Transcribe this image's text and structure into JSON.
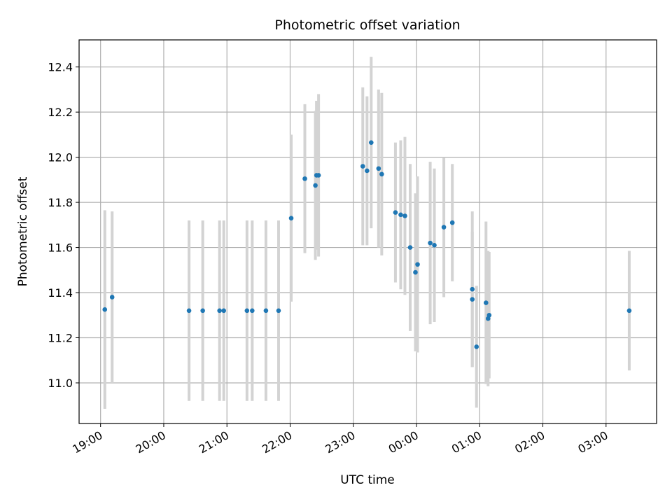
{
  "chart_data": {
    "type": "scatter",
    "title": "Photometric offset variation",
    "xlabel": "UTC time",
    "ylabel": "Photometric offset",
    "x_unit": "hours (UTC), values >= 24 are after midnight",
    "xlim": [
      18.66,
      27.8
    ],
    "ylim": [
      10.82,
      12.52
    ],
    "grid": true,
    "x_ticks": [
      19,
      20,
      21,
      22,
      23,
      24,
      25,
      26,
      27
    ],
    "x_tick_labels": [
      "19:00",
      "20:00",
      "21:00",
      "22:00",
      "23:00",
      "00:00",
      "01:00",
      "02:00",
      "03:00"
    ],
    "y_ticks": [
      11.0,
      11.2,
      11.4,
      11.6,
      11.8,
      12.0,
      12.2,
      12.4
    ],
    "y_tick_labels": [
      "11.0",
      "11.2",
      "11.4",
      "11.6",
      "11.8",
      "12.0",
      "12.2",
      "12.4"
    ],
    "series": [
      {
        "marker_color": "#1f77b4",
        "errorbar_color": "#d3d3d3",
        "points": [
          {
            "x": 19.067,
            "y": 11.325,
            "err": 0.44
          },
          {
            "x": 19.183,
            "y": 11.38,
            "err": 0.38
          },
          {
            "x": 20.4,
            "y": 11.32,
            "err": 0.4
          },
          {
            "x": 20.617,
            "y": 11.32,
            "err": 0.4
          },
          {
            "x": 20.883,
            "y": 11.32,
            "err": 0.4
          },
          {
            "x": 20.95,
            "y": 11.32,
            "err": 0.4
          },
          {
            "x": 21.317,
            "y": 11.32,
            "err": 0.4
          },
          {
            "x": 21.4,
            "y": 11.32,
            "err": 0.4
          },
          {
            "x": 21.617,
            "y": 11.32,
            "err": 0.4
          },
          {
            "x": 21.817,
            "y": 11.32,
            "err": 0.4
          },
          {
            "x": 22.017,
            "y": 11.73,
            "err": 0.37
          },
          {
            "x": 22.233,
            "y": 11.905,
            "err": 0.33
          },
          {
            "x": 22.4,
            "y": 11.875,
            "err": 0.33
          },
          {
            "x": 22.417,
            "y": 11.92,
            "err": 0.33
          },
          {
            "x": 22.45,
            "y": 11.92,
            "err": 0.36
          },
          {
            "x": 23.15,
            "y": 11.96,
            "err": 0.35
          },
          {
            "x": 23.217,
            "y": 11.94,
            "err": 0.33
          },
          {
            "x": 23.283,
            "y": 12.065,
            "err": 0.38
          },
          {
            "x": 23.4,
            "y": 11.95,
            "err": 0.35
          },
          {
            "x": 23.45,
            "y": 11.925,
            "err": 0.36
          },
          {
            "x": 23.667,
            "y": 11.755,
            "err": 0.31
          },
          {
            "x": 23.75,
            "y": 11.745,
            "err": 0.33
          },
          {
            "x": 23.817,
            "y": 11.74,
            "err": 0.35
          },
          {
            "x": 23.9,
            "y": 11.6,
            "err": 0.37
          },
          {
            "x": 23.983,
            "y": 11.49,
            "err": 0.35
          },
          {
            "x": 24.017,
            "y": 11.525,
            "err": 0.39
          },
          {
            "x": 24.217,
            "y": 11.62,
            "err": 0.36
          },
          {
            "x": 24.283,
            "y": 11.61,
            "err": 0.34
          },
          {
            "x": 24.433,
            "y": 11.69,
            "err": 0.31
          },
          {
            "x": 24.567,
            "y": 11.71,
            "err": 0.26
          },
          {
            "x": 24.883,
            "y": 11.415,
            "err": 0.345
          },
          {
            "x": 24.883,
            "y": 11.37,
            "err": 0.3
          },
          {
            "x": 24.95,
            "y": 11.16,
            "err": 0.27
          },
          {
            "x": 25.1,
            "y": 11.355,
            "err": 0.36
          },
          {
            "x": 25.133,
            "y": 11.285,
            "err": 0.3
          },
          {
            "x": 25.15,
            "y": 11.3,
            "err": 0.28
          },
          {
            "x": 27.367,
            "y": 11.32,
            "err": 0.265
          }
        ]
      }
    ]
  }
}
